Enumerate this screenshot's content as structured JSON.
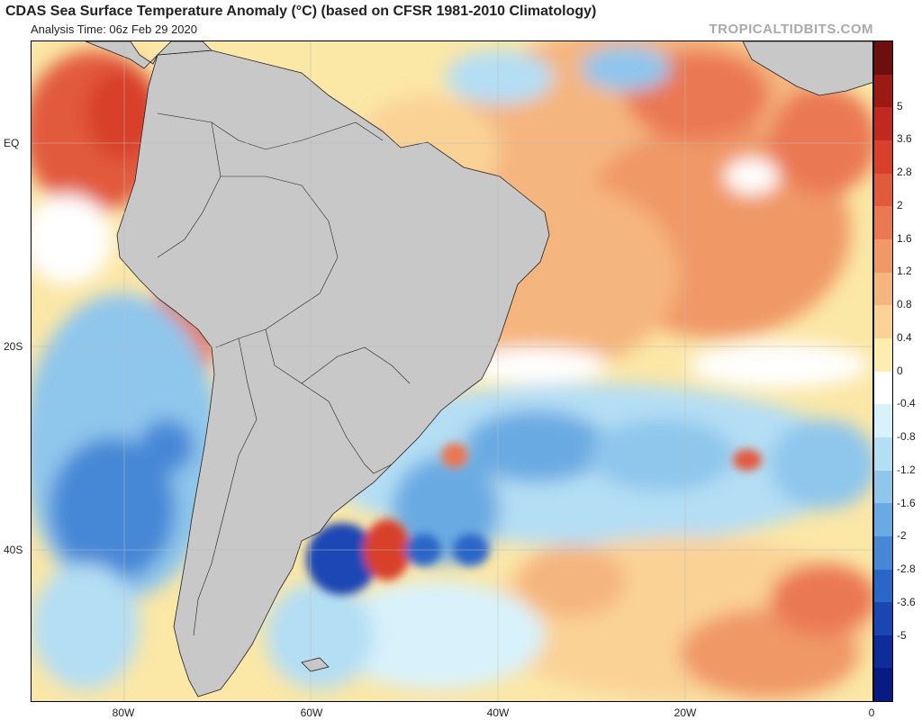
{
  "header": {
    "title": "CDAS Sea Surface Temperature Anomaly (°C) (based on CFSR 1981-2010 Climatology)",
    "subtitle": "Analysis Time: 06z Feb 29 2020",
    "site": "TROPICALTIDBITS.COM"
  },
  "axes": {
    "y_labels": [
      "EQ",
      "20S",
      "40S"
    ],
    "x_labels": [
      "80W",
      "60W",
      "40W",
      "20W",
      "0"
    ]
  },
  "colorbar": {
    "labels": [
      "5",
      "3.6",
      "2.8",
      "2",
      "1.6",
      "1.2",
      "0.8",
      "0.4",
      "0",
      "-0.4",
      "-0.8",
      "-1.2",
      "-1.6",
      "-2",
      "-2.8",
      "-3.6",
      "-5"
    ],
    "colors": [
      "#6e0e0e",
      "#9c1a14",
      "#c02820",
      "#d8402c",
      "#e25a3c",
      "#ea7852",
      "#f09866",
      "#f5b57e",
      "#fad296",
      "#fdeeb0",
      "#ffffff",
      "#d8f2fb",
      "#b4def4",
      "#8ec6ec",
      "#6aaae2",
      "#4688d6",
      "#2a66c8",
      "#1a46b4",
      "#0e2c9c",
      "#061c84"
    ]
  },
  "map": {
    "land_color": "#c8c8c8",
    "ocean_base": "#fbe7a6",
    "warm_color": "#ef8a5a",
    "hot_color": "#d8402c",
    "cool_color": "#9cccf0",
    "cold_color": "#3f7ad0",
    "deep_cold_color": "#1a46b4",
    "neutral_color": "#ffffff"
  }
}
